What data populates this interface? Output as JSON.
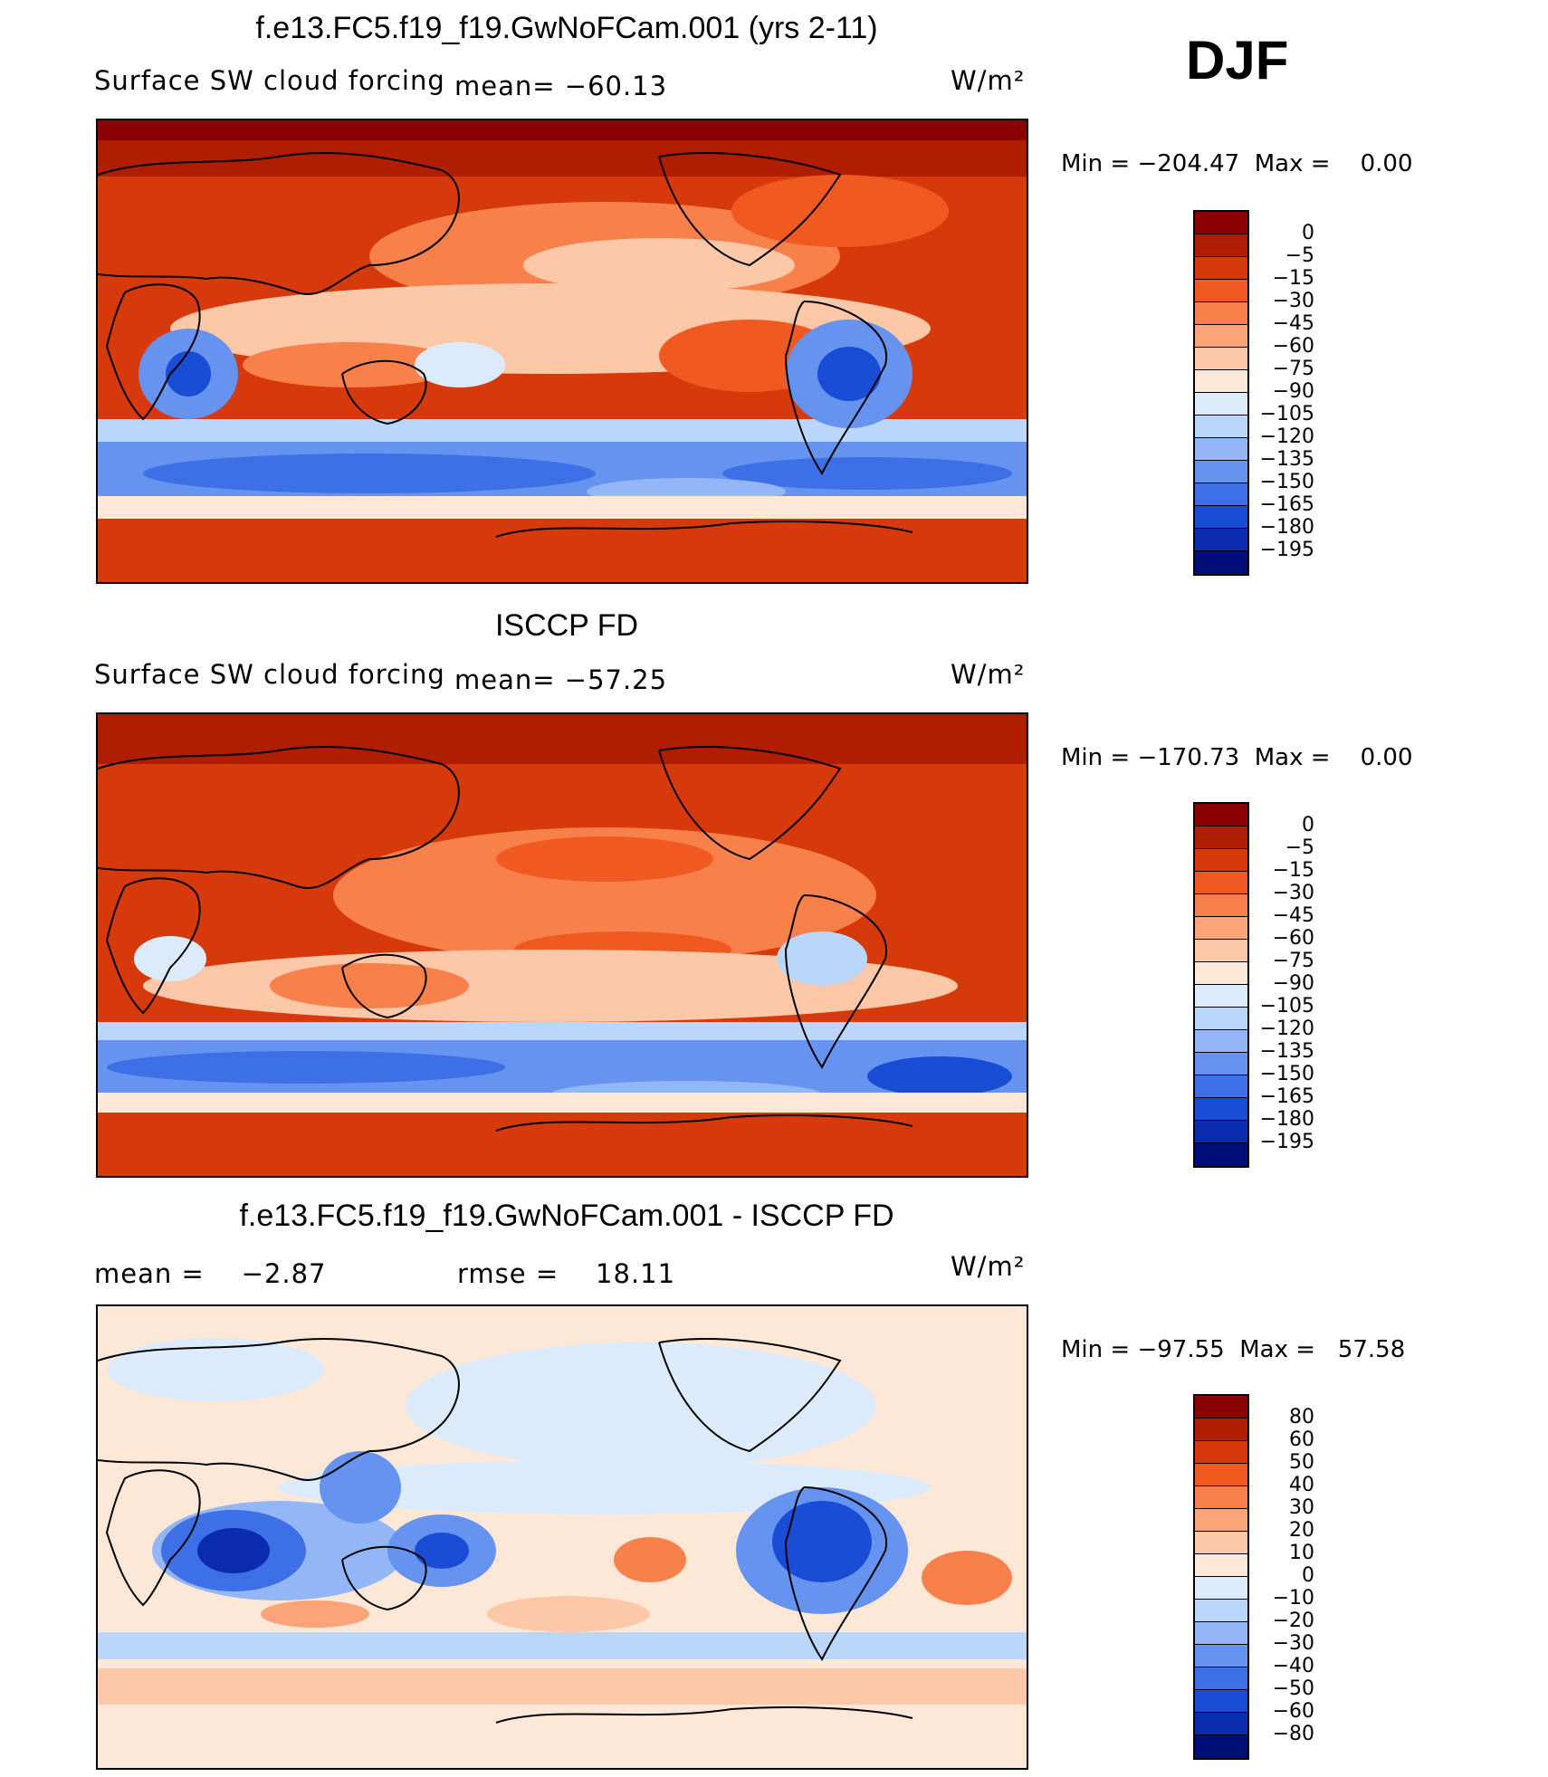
{
  "season": "DJF",
  "chart_data": [
    {
      "type": "heatmap",
      "title": "f.e13.FC5.f19_f19.GwNoFCam.001 (yrs 2-11)",
      "variable": "Surface SW cloud forcing",
      "mean_label": "mean=",
      "mean": "−60.13",
      "units": "W/m²",
      "min_label": "Min  =",
      "min": "−204.47",
      "max_label": "Max  =",
      "max": "0.00",
      "colorbar": {
        "labels": [
          "0",
          "−5",
          "−15",
          "−30",
          "−45",
          "−60",
          "−75",
          "−90",
          "−105",
          "−120",
          "−135",
          "−150",
          "−165",
          "−180",
          "−195"
        ],
        "colors": [
          "#8b0000",
          "#b01e00",
          "#d63a0a",
          "#f05a20",
          "#f8804a",
          "#fba47a",
          "#fdc8a8",
          "#fde8d8",
          "#dcebfb",
          "#bad6fa",
          "#92b6f6",
          "#6593ef",
          "#3d6fe6",
          "#1a4dd6",
          "#0c2cb0",
          "#000e7a"
        ]
      }
    },
    {
      "type": "heatmap",
      "title": "ISCCP FD",
      "variable": "Surface SW cloud forcing",
      "mean_label": "mean=",
      "mean": "−57.25",
      "units": "W/m²",
      "min_label": "Min  =",
      "min": "−170.73",
      "max_label": "Max  =",
      "max": "0.00",
      "colorbar": {
        "labels": [
          "0",
          "−5",
          "−15",
          "−30",
          "−45",
          "−60",
          "−75",
          "−90",
          "−105",
          "−120",
          "−135",
          "−150",
          "−165",
          "−180",
          "−195"
        ],
        "colors": [
          "#8b0000",
          "#b01e00",
          "#d63a0a",
          "#f05a20",
          "#f8804a",
          "#fba47a",
          "#fdc8a8",
          "#fde8d8",
          "#dcebfb",
          "#bad6fa",
          "#92b6f6",
          "#6593ef",
          "#3d6fe6",
          "#1a4dd6",
          "#0c2cb0",
          "#000e7a"
        ]
      }
    },
    {
      "type": "heatmap",
      "title": "f.e13.FC5.f19_f19.GwNoFCam.001 - ISCCP FD",
      "mean_label": "mean =",
      "mean": "−2.87",
      "rmse_label": "rmse =",
      "rmse": "18.11",
      "units": "W/m²",
      "min_label": "Min  =",
      "min": "−97.55",
      "max_label": "Max  =",
      "max": "57.58",
      "colorbar": {
        "labels": [
          "80",
          "60",
          "50",
          "40",
          "30",
          "20",
          "10",
          "0",
          "−10",
          "−20",
          "−30",
          "−40",
          "−50",
          "−60",
          "−80"
        ],
        "colors": [
          "#8b0000",
          "#b01e00",
          "#d63a0a",
          "#f05a20",
          "#f8804a",
          "#fba47a",
          "#fdc8a8",
          "#fde8d8",
          "#dcebfb",
          "#bad6fa",
          "#92b6f6",
          "#6593ef",
          "#3d6fe6",
          "#1a4dd6",
          "#0c2cb0",
          "#000e7a"
        ]
      }
    }
  ]
}
